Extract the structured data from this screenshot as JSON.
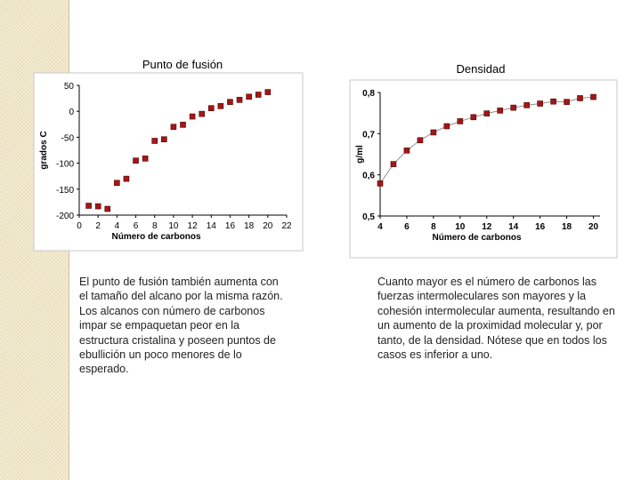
{
  "left_panel": {
    "text": "El punto de fusión también aumenta con el tamaño del alcano por la misma razón. Los alcanos con número de carbonos impar se empaquetan peor en la estructura cristalina y poseen puntos de ebullición un poco menores de lo esperado."
  },
  "right_panel": {
    "text": "Cuanto mayor es el número de carbonos las fuerzas intermoleculares son mayores y la cohesión intermolecular aumenta, resultando en un aumento de la proximidad molecular y, por tanto, de la densidad. Nótese que en todos los casos es inferior a uno."
  },
  "chart_data": [
    {
      "type": "scatter",
      "title": "Punto de fusión",
      "xlabel": "Número de carbonos",
      "ylabel": "grados C",
      "xlim": [
        0,
        22
      ],
      "ylim": [
        -200,
        50
      ],
      "x_ticks": [
        "0",
        "2",
        "4",
        "6",
        "8",
        "10",
        "12",
        "14",
        "16",
        "18",
        "20",
        "22"
      ],
      "y_ticks": [
        "50",
        "0",
        "-50",
        "-100",
        "-150",
        "-200"
      ],
      "grid": false,
      "marker_color": "#a01818",
      "x": [
        1,
        2,
        3,
        4,
        5,
        6,
        7,
        8,
        9,
        10,
        11,
        12,
        13,
        14,
        15,
        16,
        17,
        18,
        19,
        20
      ],
      "y": [
        -182,
        -183,
        -188,
        -138,
        -130,
        -95,
        -91,
        -57,
        -54,
        -30,
        -26,
        -10,
        -5,
        6,
        10,
        18,
        22,
        28,
        32,
        37
      ]
    },
    {
      "type": "line",
      "title": "Densidad",
      "xlabel": "Número de carbonos",
      "ylabel": "g/ml",
      "xlim": [
        4,
        20.5
      ],
      "ylim": [
        0.5,
        0.8
      ],
      "x_ticks": [
        "4",
        "6",
        "8",
        "10",
        "12",
        "14",
        "16",
        "18",
        "20"
      ],
      "y_ticks": [
        "0,8",
        "0,7",
        "0,6",
        "0,5"
      ],
      "grid": false,
      "marker_color": "#a01818",
      "line_color": "#909090",
      "x": [
        4,
        5,
        6,
        7,
        8,
        9,
        10,
        11,
        12,
        13,
        14,
        15,
        16,
        17,
        18,
        19,
        20
      ],
      "y": [
        0.579,
        0.626,
        0.659,
        0.684,
        0.703,
        0.718,
        0.73,
        0.74,
        0.749,
        0.756,
        0.763,
        0.769,
        0.773,
        0.778,
        0.777,
        0.786,
        0.789
      ]
    }
  ]
}
